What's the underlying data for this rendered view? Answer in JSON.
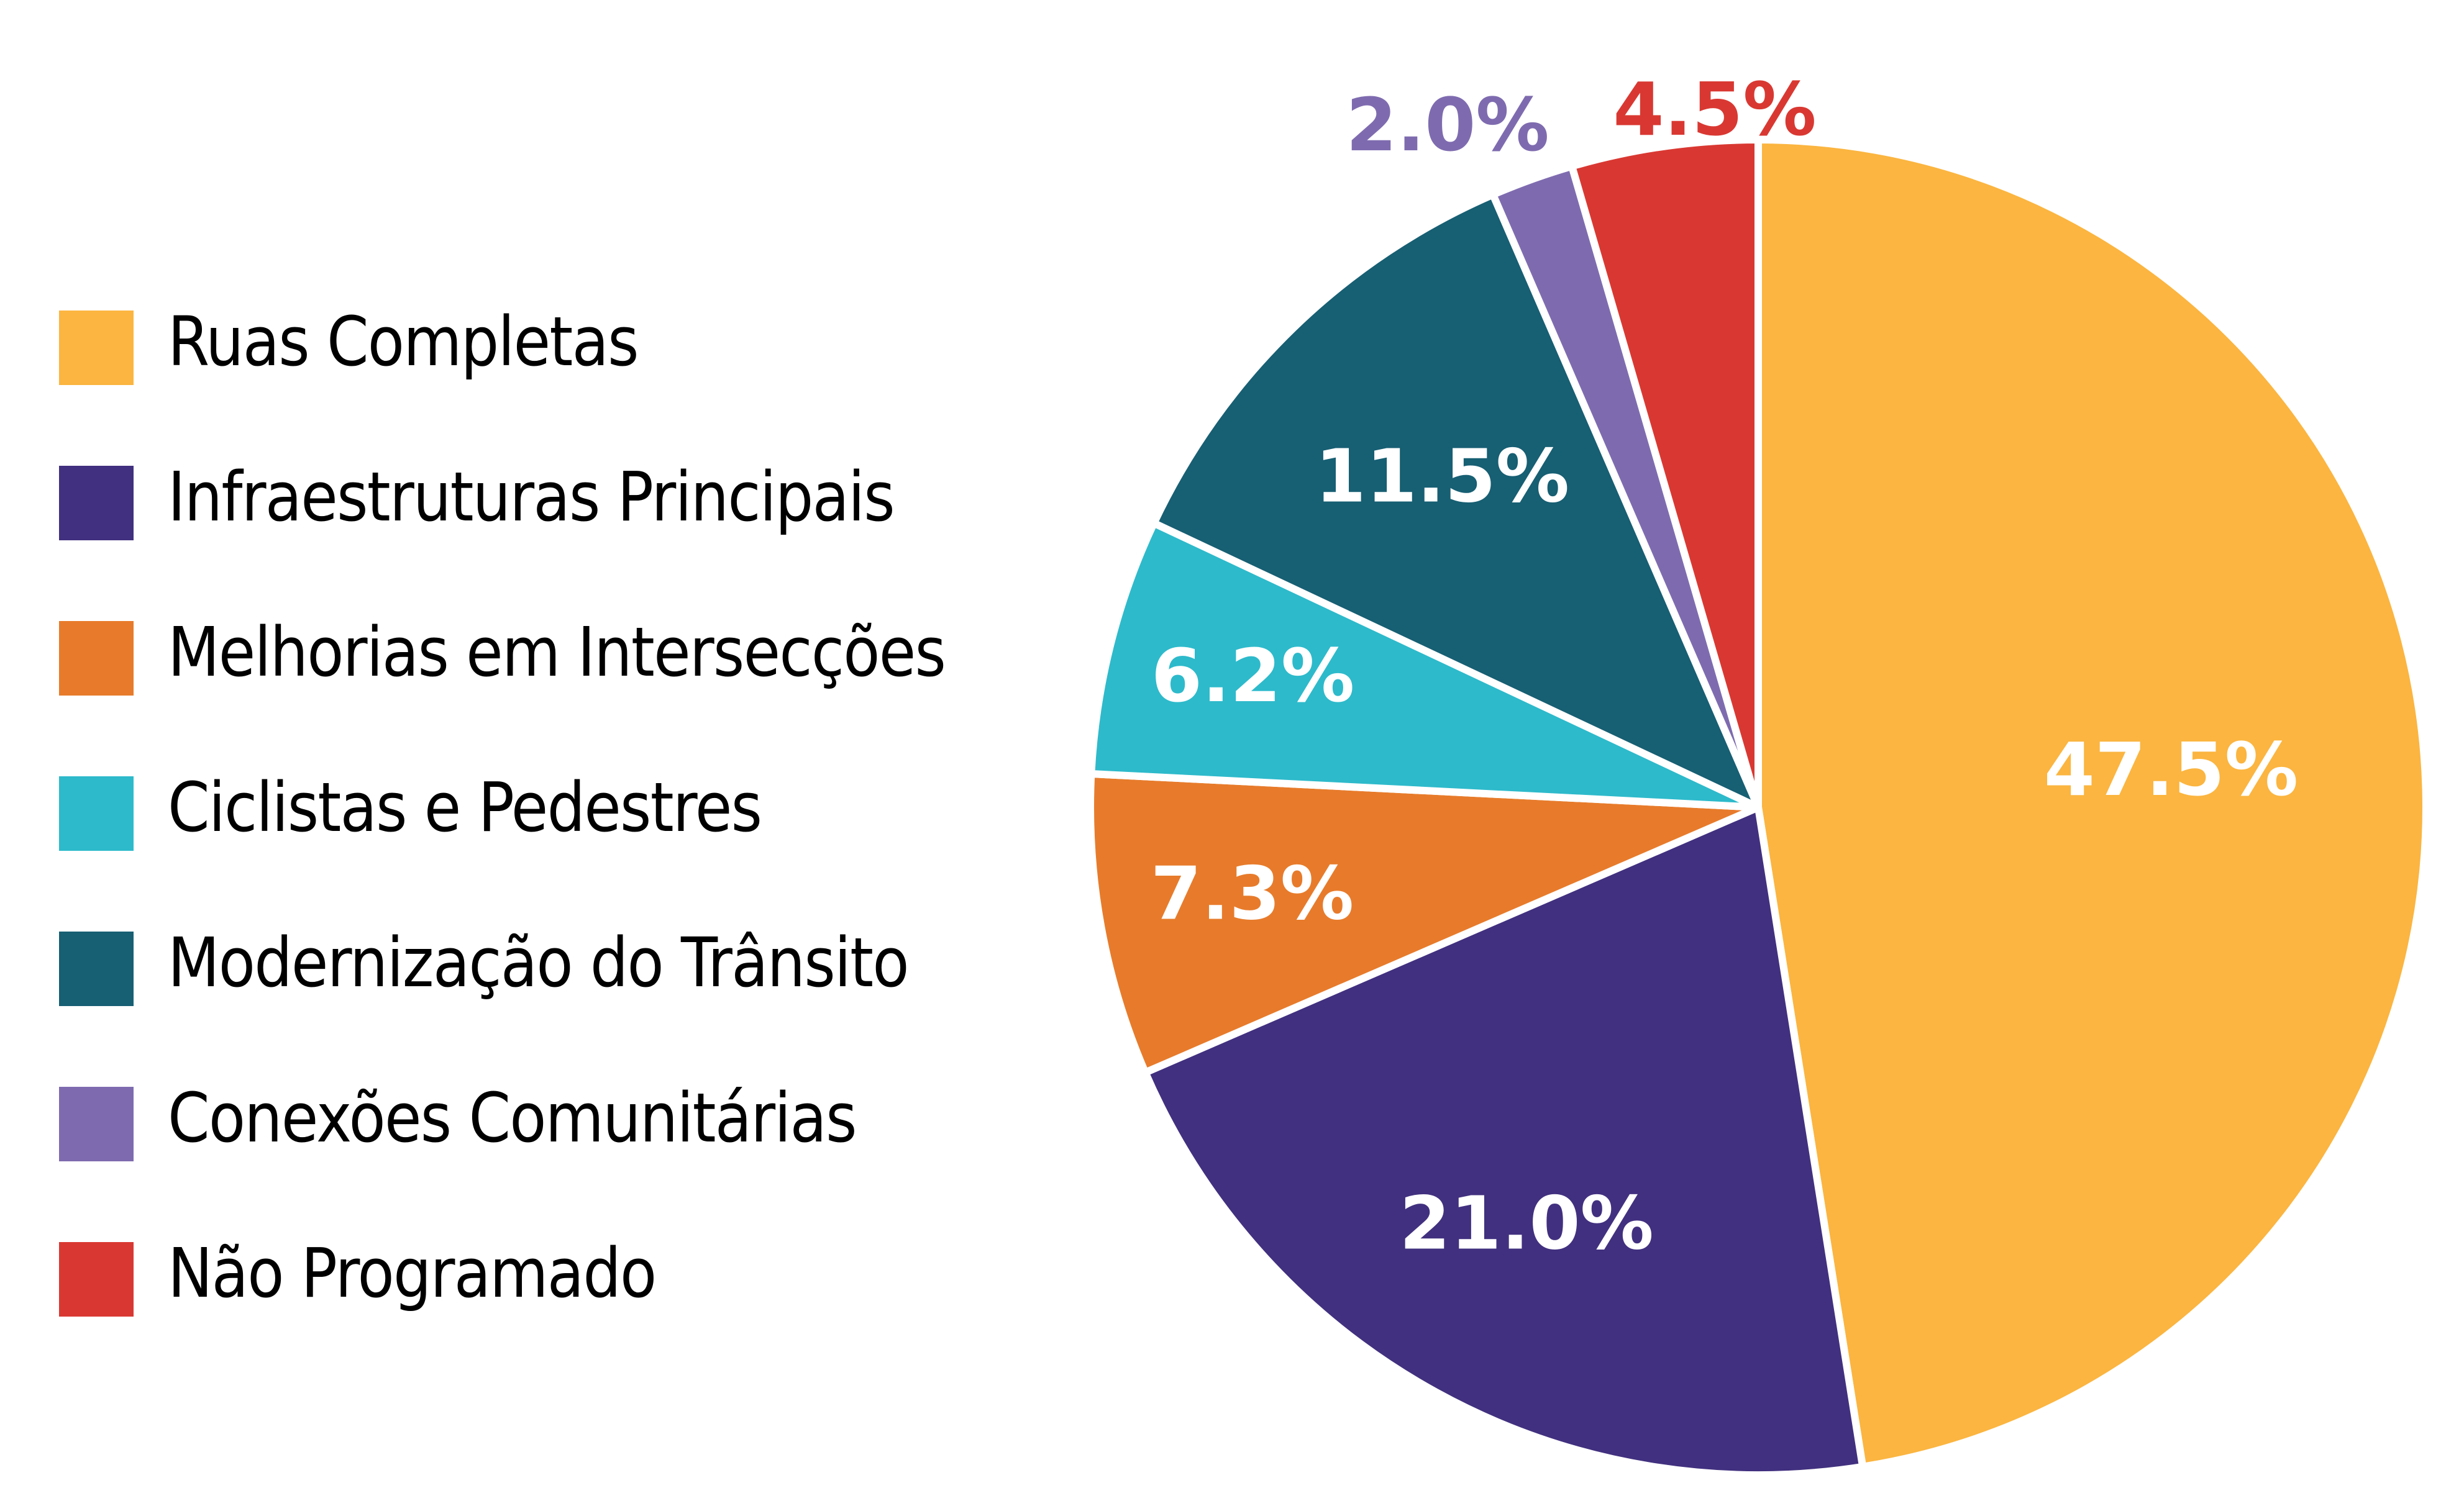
{
  "chart_data": {
    "type": "pie",
    "title": "",
    "categories": [
      "Ruas Completas",
      "Infraestruturas Principais",
      "Melhorias em Intersecções",
      "Ciclistas e Pedestres",
      "Modernização do Trânsito",
      "Conexões Comunitárias",
      "Não Programado"
    ],
    "values": [
      47.5,
      21.0,
      7.3,
      6.2,
      11.5,
      2.0,
      4.5
    ],
    "labels": [
      "47.5%",
      "21.0%",
      "7.3%",
      "6.2%",
      "11.5%",
      "2.0%",
      "4.5%"
    ],
    "colors": [
      "#FBB540",
      "#41307F",
      "#E77B2B",
      "#2DBACB",
      "#175F73",
      "#7E6BAF",
      "#D93832"
    ],
    "start_angle_deg": 0,
    "direction": "clockwise",
    "legend_position": "left"
  },
  "legend": {
    "items": [
      {
        "label": "Ruas Completas",
        "color": "#FBB540"
      },
      {
        "label": "Infraestruturas Principais",
        "color": "#41307F"
      },
      {
        "label": "Melhorias em Intersecções",
        "color": "#E77B2B"
      },
      {
        "label": "Ciclistas e Pedestres",
        "color": "#2DBACB"
      },
      {
        "label": "Modernização do Trânsito",
        "color": "#175F73"
      },
      {
        "label": "Conexões Comunitárias",
        "color": "#7E6BAF"
      },
      {
        "label": "Não Programado",
        "color": "#D93832"
      }
    ]
  }
}
